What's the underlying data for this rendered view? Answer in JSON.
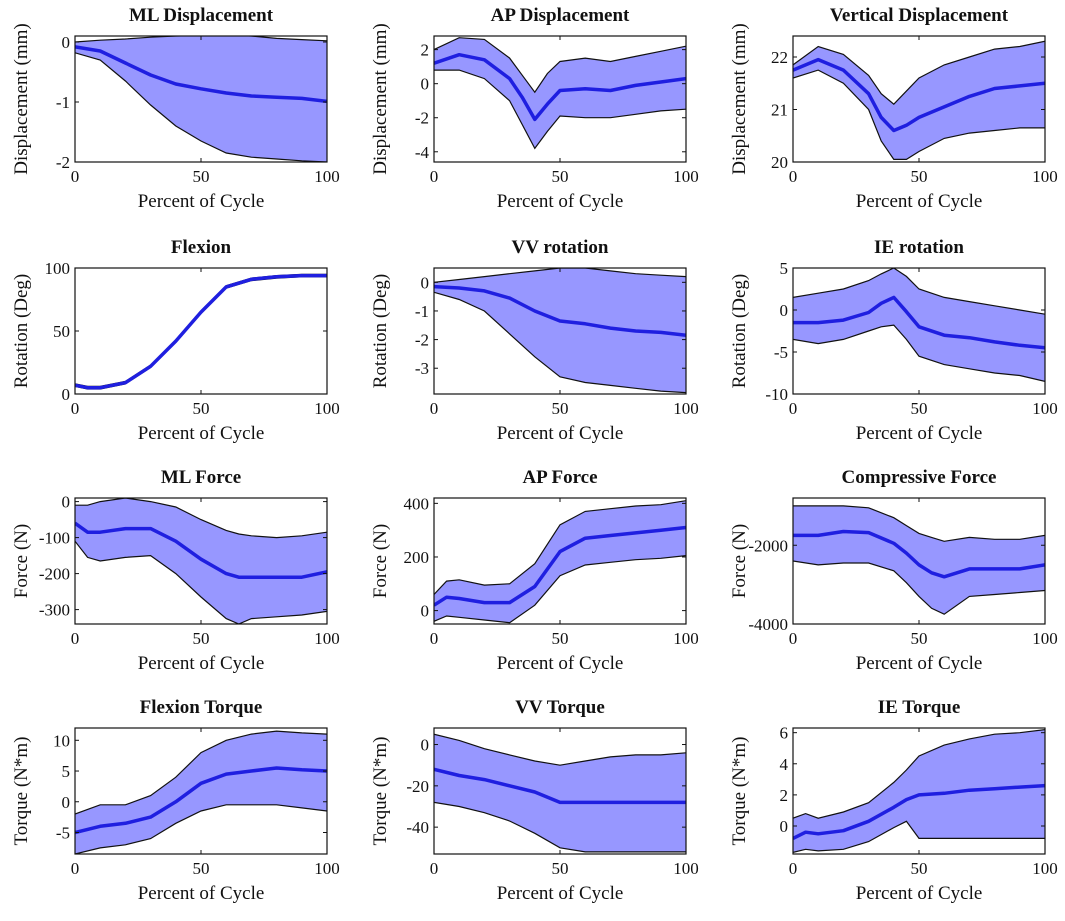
{
  "chart_data": [
    {
      "type": "area",
      "title": "ML Displacement",
      "xlabel": "Percent of Cycle",
      "ylabel": "Displacement (mm)",
      "xlim": [
        0,
        100
      ],
      "ylim": [
        -2,
        0.1
      ],
      "xticks": [
        0,
        50,
        100
      ],
      "yticks": [
        -2,
        -1,
        0
      ],
      "x": [
        0,
        10,
        20,
        30,
        40,
        50,
        60,
        70,
        80,
        90,
        100
      ],
      "mean": [
        -0.08,
        -0.15,
        -0.35,
        -0.55,
        -0.7,
        -0.78,
        -0.85,
        -0.9,
        -0.92,
        -0.94,
        -0.99
      ],
      "upper": [
        0.0,
        0.03,
        0.05,
        0.08,
        0.1,
        0.11,
        0.12,
        0.1,
        0.06,
        0.04,
        0.02
      ],
      "lower": [
        -0.18,
        -0.3,
        -0.65,
        -1.05,
        -1.4,
        -1.65,
        -1.85,
        -1.92,
        -1.95,
        -1.98,
        -2.0
      ]
    },
    {
      "type": "area",
      "title": "AP Displacement",
      "xlabel": "Percent of Cycle",
      "ylabel": "Displacement (mm)",
      "xlim": [
        0,
        100
      ],
      "ylim": [
        -4.6,
        2.8
      ],
      "xticks": [
        0,
        50,
        100
      ],
      "yticks": [
        -4,
        -2,
        0,
        2
      ],
      "x": [
        0,
        10,
        20,
        30,
        35,
        40,
        45,
        50,
        60,
        70,
        80,
        90,
        100
      ],
      "mean": [
        1.2,
        1.7,
        1.4,
        0.3,
        -0.8,
        -2.1,
        -1.2,
        -0.4,
        -0.3,
        -0.4,
        -0.1,
        0.1,
        0.3
      ],
      "upper": [
        2.0,
        2.7,
        2.6,
        1.5,
        0.5,
        -0.5,
        0.6,
        1.3,
        1.5,
        1.3,
        1.6,
        1.9,
        2.2
      ],
      "lower": [
        0.8,
        0.8,
        0.3,
        -1.0,
        -2.4,
        -3.8,
        -2.8,
        -1.9,
        -2.0,
        -2.0,
        -1.8,
        -1.6,
        -1.5
      ]
    },
    {
      "type": "area",
      "title": "Vertical Displacement",
      "xlabel": "Percent of Cycle",
      "ylabel": "Displacement (mm)",
      "xlim": [
        0,
        100
      ],
      "ylim": [
        20,
        22.4
      ],
      "xticks": [
        0,
        50,
        100
      ],
      "yticks": [
        20,
        21,
        22
      ],
      "x": [
        0,
        10,
        20,
        30,
        35,
        40,
        45,
        50,
        60,
        70,
        80,
        90,
        100
      ],
      "mean": [
        21.75,
        21.95,
        21.75,
        21.3,
        20.85,
        20.6,
        20.7,
        20.85,
        21.05,
        21.25,
        21.4,
        21.45,
        21.5
      ],
      "upper": [
        21.85,
        22.2,
        22.05,
        21.65,
        21.3,
        21.1,
        21.35,
        21.6,
        21.85,
        22.0,
        22.15,
        22.2,
        22.3
      ],
      "lower": [
        21.6,
        21.75,
        21.5,
        21.0,
        20.4,
        20.05,
        20.05,
        20.2,
        20.45,
        20.55,
        20.6,
        20.65,
        20.65
      ]
    },
    {
      "type": "area",
      "title": "Flexion",
      "xlabel": "Percent of Cycle",
      "ylabel": "Rotation (Deg)",
      "xlim": [
        0,
        100
      ],
      "ylim": [
        0,
        100
      ],
      "xticks": [
        0,
        50,
        100
      ],
      "yticks": [
        0,
        50,
        100
      ],
      "x": [
        0,
        5,
        10,
        20,
        30,
        40,
        50,
        60,
        70,
        80,
        90,
        100
      ],
      "mean": [
        7,
        5,
        5,
        9,
        22,
        42,
        65,
        85,
        91,
        93,
        94,
        94
      ],
      "upper": [
        8,
        6,
        6,
        10,
        23,
        43,
        66,
        86,
        92,
        94,
        95,
        95
      ],
      "lower": [
        6,
        4,
        4,
        8,
        21,
        41,
        64,
        84,
        90,
        92,
        93,
        93
      ]
    },
    {
      "type": "area",
      "title": "VV rotation",
      "xlabel": "Percent of Cycle",
      "ylabel": "Rotation (Deg)",
      "xlim": [
        0,
        100
      ],
      "ylim": [
        -3.9,
        0.5
      ],
      "xticks": [
        0,
        50,
        100
      ],
      "yticks": [
        -3,
        -2,
        -1,
        0
      ],
      "x": [
        0,
        10,
        20,
        30,
        40,
        50,
        60,
        70,
        80,
        90,
        100
      ],
      "mean": [
        -0.15,
        -0.2,
        -0.3,
        -0.55,
        -1.0,
        -1.35,
        -1.45,
        -1.6,
        -1.7,
        -1.75,
        -1.85
      ],
      "upper": [
        0.0,
        0.1,
        0.2,
        0.3,
        0.4,
        0.5,
        0.5,
        0.4,
        0.3,
        0.25,
        0.2
      ],
      "lower": [
        -0.35,
        -0.6,
        -1.0,
        -1.8,
        -2.6,
        -3.3,
        -3.5,
        -3.6,
        -3.7,
        -3.8,
        -3.85
      ]
    },
    {
      "type": "area",
      "title": "IE rotation",
      "xlabel": "Percent of Cycle",
      "ylabel": "Rotation (Deg)",
      "xlim": [
        0,
        100
      ],
      "ylim": [
        -10,
        5
      ],
      "xticks": [
        0,
        50,
        100
      ],
      "yticks": [
        -10,
        -5,
        0,
        5
      ],
      "x": [
        0,
        10,
        20,
        30,
        35,
        40,
        45,
        50,
        60,
        70,
        80,
        90,
        100
      ],
      "mean": [
        -1.5,
        -1.5,
        -1.2,
        -0.3,
        0.8,
        1.5,
        -0.2,
        -2.0,
        -3.0,
        -3.3,
        -3.8,
        -4.2,
        -4.5
      ],
      "upper": [
        1.5,
        2.0,
        2.5,
        3.5,
        4.3,
        5.0,
        4.0,
        2.5,
        1.5,
        1.0,
        0.5,
        0.0,
        -0.5
      ],
      "lower": [
        -3.5,
        -4.0,
        -3.5,
        -2.5,
        -2.0,
        -1.8,
        -3.5,
        -5.5,
        -6.5,
        -7.0,
        -7.5,
        -7.8,
        -8.5
      ]
    },
    {
      "type": "area",
      "title": "ML Force",
      "xlabel": "Percent of Cycle",
      "ylabel": "Force (N)",
      "xlim": [
        0,
        100
      ],
      "ylim": [
        -340,
        10
      ],
      "xticks": [
        0,
        50,
        100
      ],
      "yticks": [
        -300,
        -200,
        -100,
        0
      ],
      "x": [
        0,
        5,
        10,
        20,
        30,
        40,
        50,
        60,
        65,
        70,
        80,
        90,
        100
      ],
      "mean": [
        -60,
        -85,
        -85,
        -75,
        -75,
        -110,
        -160,
        -200,
        -210,
        -210,
        -210,
        -210,
        -195
      ],
      "upper": [
        -10,
        -10,
        0,
        10,
        0,
        -15,
        -50,
        -80,
        -90,
        -95,
        -100,
        -95,
        -85
      ],
      "lower": [
        -110,
        -155,
        -165,
        -155,
        -150,
        -200,
        -265,
        -325,
        -340,
        -325,
        -320,
        -315,
        -305
      ]
    },
    {
      "type": "area",
      "title": "AP Force",
      "xlabel": "Percent of Cycle",
      "ylabel": "Force (N)",
      "xlim": [
        0,
        100
      ],
      "ylim": [
        -50,
        420
      ],
      "xticks": [
        0,
        50,
        100
      ],
      "yticks": [
        0,
        200,
        400
      ],
      "x": [
        0,
        5,
        10,
        20,
        30,
        40,
        50,
        60,
        70,
        80,
        90,
        100
      ],
      "mean": [
        20,
        50,
        45,
        30,
        30,
        90,
        220,
        270,
        280,
        290,
        300,
        310
      ],
      "upper": [
        60,
        110,
        115,
        95,
        100,
        175,
        320,
        370,
        380,
        390,
        395,
        410
      ],
      "lower": [
        -40,
        -20,
        -25,
        -35,
        -45,
        20,
        130,
        170,
        180,
        190,
        195,
        205
      ]
    },
    {
      "type": "area",
      "title": "Compressive Force",
      "xlabel": "Percent of Cycle",
      "ylabel": "Force (N)",
      "xlim": [
        0,
        100
      ],
      "ylim": [
        -4000,
        -800
      ],
      "xticks": [
        0,
        50,
        100
      ],
      "yticks": [
        -4000,
        -2000
      ],
      "x": [
        0,
        10,
        20,
        30,
        40,
        45,
        50,
        55,
        60,
        70,
        80,
        90,
        100
      ],
      "mean": [
        -1750,
        -1750,
        -1650,
        -1680,
        -1950,
        -2200,
        -2500,
        -2700,
        -2800,
        -2600,
        -2600,
        -2600,
        -2500
      ],
      "upper": [
        -1000,
        -1000,
        -1000,
        -1050,
        -1300,
        -1500,
        -1700,
        -1800,
        -1900,
        -1800,
        -1850,
        -1850,
        -1750
      ],
      "lower": [
        -2400,
        -2500,
        -2450,
        -2450,
        -2650,
        -2950,
        -3300,
        -3600,
        -3750,
        -3300,
        -3250,
        -3200,
        -3150
      ]
    },
    {
      "type": "area",
      "title": "Flexion Torque",
      "xlabel": "Percent of Cycle",
      "ylabel": "Torque (N*m)",
      "xlim": [
        0,
        100
      ],
      "ylim": [
        -8.5,
        12
      ],
      "xticks": [
        0,
        50,
        100
      ],
      "yticks": [
        -5,
        0,
        5,
        10
      ],
      "x": [
        0,
        10,
        20,
        30,
        40,
        50,
        60,
        70,
        80,
        90,
        100
      ],
      "mean": [
        -5,
        -4,
        -3.5,
        -2.5,
        0,
        3,
        4.5,
        5.0,
        5.5,
        5.2,
        5.0
      ],
      "upper": [
        -2,
        -0.5,
        -0.5,
        1,
        4,
        8,
        10,
        11,
        11.5,
        11.2,
        11
      ],
      "lower": [
        -8.5,
        -7.5,
        -7,
        -6,
        -3.5,
        -1.5,
        -0.5,
        -0.5,
        -0.5,
        -1,
        -1.5
      ]
    },
    {
      "type": "area",
      "title": "VV Torque",
      "xlabel": "Percent of Cycle",
      "ylabel": "Torque (N*m)",
      "xlim": [
        0,
        100
      ],
      "ylim": [
        -53,
        8
      ],
      "xticks": [
        0,
        50,
        100
      ],
      "yticks": [
        -40,
        -20,
        0
      ],
      "x": [
        0,
        10,
        20,
        30,
        40,
        50,
        60,
        70,
        80,
        90,
        100
      ],
      "mean": [
        -12,
        -15,
        -17,
        -20,
        -23,
        -28,
        -28,
        -28,
        -28,
        -28,
        -28
      ],
      "upper": [
        5,
        2,
        -2,
        -5,
        -8,
        -10,
        -8,
        -6,
        -5,
        -5,
        -4
      ],
      "lower": [
        -28,
        -30,
        -33,
        -37,
        -43,
        -50,
        -52,
        -52,
        -52,
        -52,
        -52
      ]
    },
    {
      "type": "area",
      "title": "IE Torque",
      "xlabel": "Percent of Cycle",
      "ylabel": "Torque (N*m)",
      "xlim": [
        0,
        100
      ],
      "ylim": [
        -1.8,
        6.3
      ],
      "xticks": [
        0,
        50,
        100
      ],
      "yticks": [
        0,
        2,
        4,
        6
      ],
      "x": [
        0,
        5,
        10,
        20,
        30,
        40,
        45,
        50,
        60,
        70,
        80,
        90,
        100
      ],
      "mean": [
        -0.8,
        -0.4,
        -0.5,
        -0.3,
        0.3,
        1.2,
        1.7,
        2.0,
        2.1,
        2.3,
        2.4,
        2.5,
        2.6
      ],
      "upper": [
        0.5,
        0.8,
        0.5,
        0.9,
        1.5,
        2.8,
        3.6,
        4.5,
        5.2,
        5.6,
        5.9,
        6.0,
        6.2
      ],
      "lower": [
        -1.7,
        -1.5,
        -1.6,
        -1.5,
        -1.0,
        -0.1,
        0.3,
        -0.8,
        -0.8,
        -0.8,
        -0.8,
        -0.8,
        -0.8
      ]
    }
  ],
  "style": {
    "band_color": "#9797ff",
    "mean_color": "#1f1fe0",
    "edge_color": "#111111"
  }
}
